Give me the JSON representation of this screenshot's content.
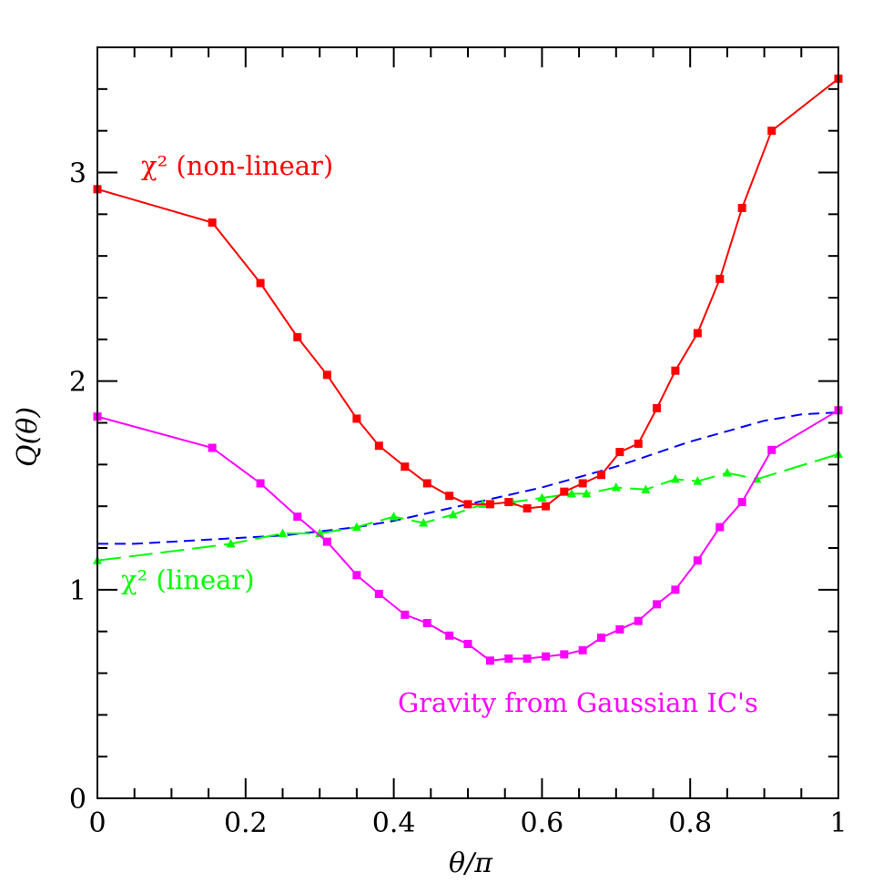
{
  "chart_data": {
    "type": "line",
    "title": "",
    "xlabel": "θ/π",
    "ylabel": "Q(θ)",
    "xlim": [
      0,
      1
    ],
    "ylim": [
      0,
      3.6
    ],
    "x_ticks": [
      "0",
      "0.2",
      "0.4",
      "0.6",
      "0.8",
      "1"
    ],
    "x_tick_values": [
      0,
      0.2,
      0.4,
      0.6,
      0.8,
      1
    ],
    "y_ticks": [
      "0",
      "1",
      "2",
      "3"
    ],
    "y_tick_values": [
      0,
      1,
      2,
      3
    ],
    "series": [
      {
        "name": "χ² (non-linear)",
        "color": "#ff0000",
        "style": "solid",
        "marker": "square",
        "x": [
          0,
          0.155,
          0.22,
          0.27,
          0.31,
          0.35,
          0.38,
          0.415,
          0.445,
          0.475,
          0.5,
          0.53,
          0.555,
          0.58,
          0.605,
          0.63,
          0.655,
          0.68,
          0.705,
          0.73,
          0.755,
          0.78,
          0.81,
          0.84,
          0.87,
          0.91,
          1.0
        ],
        "y": [
          2.92,
          2.76,
          2.47,
          2.21,
          2.03,
          1.82,
          1.69,
          1.59,
          1.51,
          1.45,
          1.41,
          1.41,
          1.42,
          1.39,
          1.4,
          1.47,
          1.51,
          1.55,
          1.66,
          1.7,
          1.87,
          2.05,
          2.23,
          2.49,
          2.83,
          3.2,
          3.45
        ]
      },
      {
        "name": "Gravity from Gaussian IC's",
        "color": "#ff00ff",
        "style": "solid",
        "marker": "square",
        "x": [
          0,
          0.155,
          0.22,
          0.27,
          0.31,
          0.35,
          0.38,
          0.415,
          0.445,
          0.475,
          0.5,
          0.53,
          0.555,
          0.58,
          0.605,
          0.63,
          0.655,
          0.68,
          0.705,
          0.73,
          0.755,
          0.78,
          0.81,
          0.84,
          0.87,
          0.91,
          1.0
        ],
        "y": [
          1.83,
          1.68,
          1.51,
          1.35,
          1.23,
          1.07,
          0.98,
          0.88,
          0.84,
          0.78,
          0.74,
          0.66,
          0.67,
          0.67,
          0.68,
          0.69,
          0.71,
          0.77,
          0.81,
          0.85,
          0.93,
          1.0,
          1.14,
          1.3,
          1.42,
          1.67,
          1.86
        ]
      },
      {
        "name": "χ² (linear)",
        "color": "#00ff00",
        "style": "long-dash",
        "marker": "triangle",
        "x": [
          0,
          0.18,
          0.25,
          0.3,
          0.35,
          0.4,
          0.44,
          0.48,
          0.52,
          0.56,
          0.6,
          0.64,
          0.66,
          0.7,
          0.74,
          0.78,
          0.81,
          0.85,
          0.89,
          1.0
        ],
        "y": [
          1.14,
          1.22,
          1.27,
          1.27,
          1.3,
          1.35,
          1.32,
          1.36,
          1.41,
          1.42,
          1.44,
          1.46,
          1.46,
          1.49,
          1.48,
          1.53,
          1.52,
          1.56,
          1.53,
          1.65
        ]
      },
      {
        "name": "",
        "color": "#0000ff",
        "style": "short-dash",
        "marker": "none",
        "x": [
          0,
          0.05,
          0.1,
          0.15,
          0.2,
          0.25,
          0.3,
          0.35,
          0.4,
          0.45,
          0.5,
          0.55,
          0.6,
          0.65,
          0.7,
          0.75,
          0.8,
          0.85,
          0.9,
          0.95,
          1.0
        ],
        "y": [
          1.22,
          1.22,
          1.23,
          1.24,
          1.25,
          1.26,
          1.28,
          1.3,
          1.33,
          1.37,
          1.41,
          1.45,
          1.49,
          1.54,
          1.59,
          1.65,
          1.71,
          1.76,
          1.81,
          1.84,
          1.85
        ]
      }
    ],
    "annotations": [
      {
        "text": "χ² (non-linear)",
        "color": "#ff0000",
        "series": 0
      },
      {
        "text": "χ² (linear)",
        "color": "#00ff00",
        "series": 2
      },
      {
        "text": "Gravity from Gaussian IC's",
        "color": "#ff00ff",
        "series": 1
      }
    ]
  }
}
